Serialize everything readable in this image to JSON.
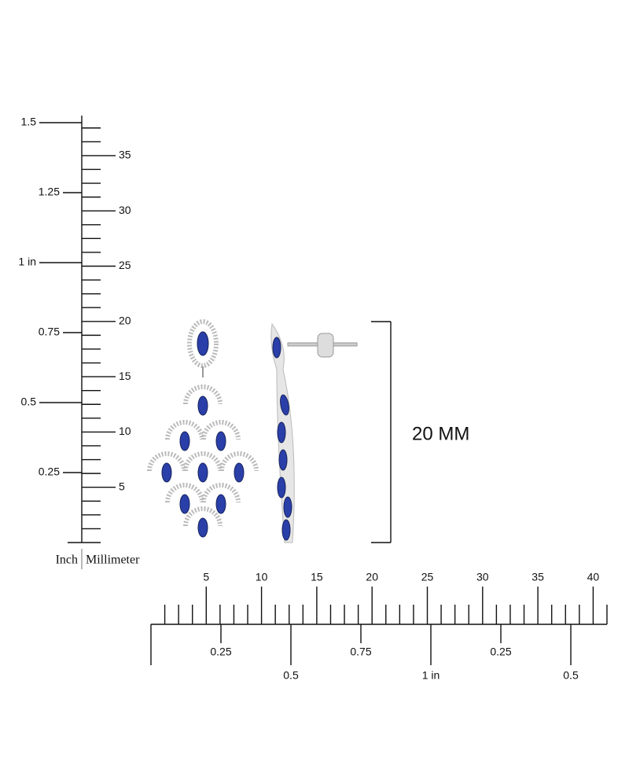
{
  "vertical_ruler": {
    "inch_labels": [
      "0.25",
      "0.5",
      "0.75",
      "1 in",
      "1.25",
      "1.5"
    ],
    "mm_labels": [
      "5",
      "10",
      "15",
      "20",
      "25",
      "30",
      "35"
    ],
    "inch_caption": "Inch",
    "mm_caption": "Millimeter"
  },
  "horizontal_ruler": {
    "mm_labels": [
      "5",
      "10",
      "15",
      "20",
      "25",
      "30",
      "35",
      "40"
    ],
    "inch_labels": [
      "0.25",
      "0.5",
      "0.75",
      "1 in",
      "0.25",
      "0.5"
    ]
  },
  "dimension": {
    "label": "20 MM"
  }
}
